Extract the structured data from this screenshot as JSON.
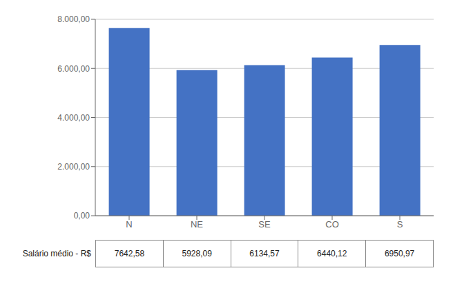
{
  "chart_data": {
    "type": "bar",
    "categories": [
      "N",
      "NE",
      "SE",
      "CO",
      "S"
    ],
    "values": [
      7642.58,
      5928.09,
      6134.57,
      6440.12,
      6950.97
    ],
    "color": "#4472C4",
    "ylim": [
      0,
      8000
    ],
    "yticks": [
      {
        "value": 0,
        "label": "0,00"
      },
      {
        "value": 2000,
        "label": "2.000,00"
      },
      {
        "value": 4000,
        "label": "4.000,00"
      },
      {
        "value": 6000,
        "label": "6.000,00"
      },
      {
        "value": 8000,
        "label": "8.000,00"
      }
    ],
    "grid": true,
    "table_row_label": "Salário médio - R$",
    "value_labels": [
      "7642,58",
      "5928,09",
      "6134,57",
      "6440,12",
      "6950,97"
    ]
  }
}
